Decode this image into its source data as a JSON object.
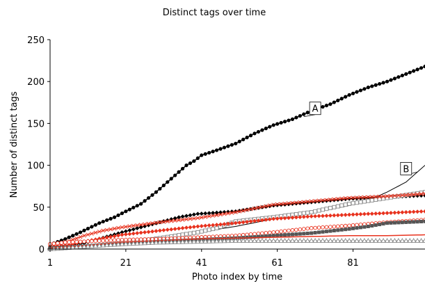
{
  "chart_data": {
    "type": "line",
    "title": "Distinct tags over time",
    "xlabel": "Photo index by time",
    "ylabel": "Number of distinct tags",
    "xlim": [
      1,
      100
    ],
    "ylim": [
      0,
      250
    ],
    "xticks": [
      "1",
      "21",
      "41",
      "61",
      "81"
    ],
    "yticks": [
      "0",
      "50",
      "100",
      "150",
      "200",
      "250"
    ],
    "grid": false,
    "legend": "none",
    "annotations": [
      {
        "text": "A",
        "x": 71,
        "y": 168,
        "target_x": 68,
        "target_y": 158
      },
      {
        "text": "B",
        "x": 95,
        "y": 96,
        "target_x": 98,
        "target_y": 92
      }
    ],
    "series": [
      {
        "color": "#000000",
        "marker": "circle",
        "linewidth": 1.5,
        "points": [
          [
            1,
            3
          ],
          [
            2,
            7
          ],
          [
            5,
            12
          ],
          [
            9,
            20
          ],
          [
            14,
            31
          ],
          [
            18,
            38
          ],
          [
            21,
            45
          ],
          [
            25,
            54
          ],
          [
            29,
            68
          ],
          [
            33,
            84
          ],
          [
            37,
            100
          ],
          [
            39,
            105
          ],
          [
            41,
            112
          ],
          [
            45,
            118
          ],
          [
            50,
            126
          ],
          [
            55,
            138
          ],
          [
            60,
            148
          ],
          [
            65,
            155
          ],
          [
            70,
            165
          ],
          [
            75,
            173
          ],
          [
            80,
            184
          ],
          [
            85,
            193
          ],
          [
            90,
            200
          ],
          [
            95,
            209
          ],
          [
            100,
            218
          ]
        ]
      },
      {
        "color": "#000000",
        "marker": "none",
        "linewidth": 1,
        "points": [
          [
            1,
            1
          ],
          [
            10,
            4
          ],
          [
            20,
            8
          ],
          [
            30,
            14
          ],
          [
            40,
            20
          ],
          [
            50,
            27
          ],
          [
            60,
            36
          ],
          [
            70,
            43
          ],
          [
            80,
            52
          ],
          [
            85,
            58
          ],
          [
            90,
            68
          ],
          [
            95,
            80
          ],
          [
            100,
            100
          ]
        ]
      },
      {
        "color": "#000000",
        "marker": "diamond",
        "linewidth": 1,
        "points": [
          [
            1,
            2
          ],
          [
            10,
            7
          ],
          [
            20,
            20
          ],
          [
            30,
            32
          ],
          [
            35,
            38
          ],
          [
            40,
            42
          ],
          [
            50,
            45
          ],
          [
            60,
            52
          ],
          [
            70,
            56
          ],
          [
            80,
            60
          ],
          [
            90,
            62
          ],
          [
            100,
            64
          ]
        ]
      },
      {
        "color": "#888888",
        "marker": "square-open",
        "linewidth": 1,
        "points": [
          [
            1,
            0
          ],
          [
            10,
            3
          ],
          [
            20,
            7
          ],
          [
            30,
            13
          ],
          [
            40,
            20
          ],
          [
            45,
            25
          ],
          [
            50,
            33
          ],
          [
            60,
            38
          ],
          [
            70,
            44
          ],
          [
            80,
            54
          ],
          [
            90,
            61
          ],
          [
            100,
            68
          ]
        ]
      },
      {
        "color": "#e8321e",
        "marker": "x",
        "linewidth": 1,
        "points": [
          [
            1,
            2
          ],
          [
            5,
            8
          ],
          [
            10,
            16
          ],
          [
            15,
            22
          ],
          [
            20,
            26
          ],
          [
            30,
            32
          ],
          [
            40,
            37
          ],
          [
            50,
            44
          ],
          [
            60,
            53
          ],
          [
            70,
            57
          ],
          [
            80,
            61
          ],
          [
            90,
            63
          ],
          [
            100,
            66
          ]
        ]
      },
      {
        "color": "#e8321e",
        "marker": "diamond",
        "linewidth": 1,
        "points": [
          [
            1,
            1
          ],
          [
            5,
            4
          ],
          [
            10,
            9
          ],
          [
            15,
            13
          ],
          [
            20,
            17
          ],
          [
            30,
            22
          ],
          [
            40,
            27
          ],
          [
            50,
            31
          ],
          [
            60,
            36
          ],
          [
            70,
            39
          ],
          [
            80,
            41
          ],
          [
            90,
            43
          ],
          [
            100,
            45
          ]
        ]
      },
      {
        "color": "#e8321e",
        "marker": "circle-open",
        "linewidth": 1,
        "points": [
          [
            1,
            6
          ],
          [
            5,
            8
          ],
          [
            10,
            9
          ],
          [
            20,
            11
          ],
          [
            30,
            12
          ],
          [
            40,
            14
          ],
          [
            50,
            16
          ],
          [
            60,
            20
          ],
          [
            70,
            25
          ],
          [
            80,
            28
          ],
          [
            90,
            32
          ],
          [
            100,
            35
          ]
        ]
      },
      {
        "color": "#555555",
        "marker": "square",
        "linewidth": 1.5,
        "points": [
          [
            1,
            1
          ],
          [
            10,
            3
          ],
          [
            20,
            6
          ],
          [
            30,
            9
          ],
          [
            40,
            11
          ],
          [
            50,
            13
          ],
          [
            60,
            16
          ],
          [
            70,
            19
          ],
          [
            80,
            24
          ],
          [
            85,
            27
          ],
          [
            90,
            31
          ],
          [
            100,
            33
          ]
        ]
      },
      {
        "color": "#e8321e",
        "marker": "none",
        "linewidth": 1.5,
        "points": [
          [
            1,
            1
          ],
          [
            10,
            4
          ],
          [
            20,
            8
          ],
          [
            30,
            10
          ],
          [
            40,
            12
          ],
          [
            50,
            13
          ],
          [
            60,
            14
          ],
          [
            70,
            15
          ],
          [
            80,
            16
          ],
          [
            90,
            16
          ],
          [
            100,
            17
          ]
        ]
      },
      {
        "color": "#888888",
        "marker": "triangle-open",
        "linewidth": 1,
        "points": [
          [
            1,
            0
          ],
          [
            10,
            3
          ],
          [
            20,
            6
          ],
          [
            30,
            8
          ],
          [
            40,
            9
          ],
          [
            50,
            10
          ],
          [
            60,
            10
          ],
          [
            70,
            10
          ],
          [
            80,
            10
          ],
          [
            90,
            10
          ],
          [
            100,
            10
          ]
        ]
      }
    ]
  }
}
